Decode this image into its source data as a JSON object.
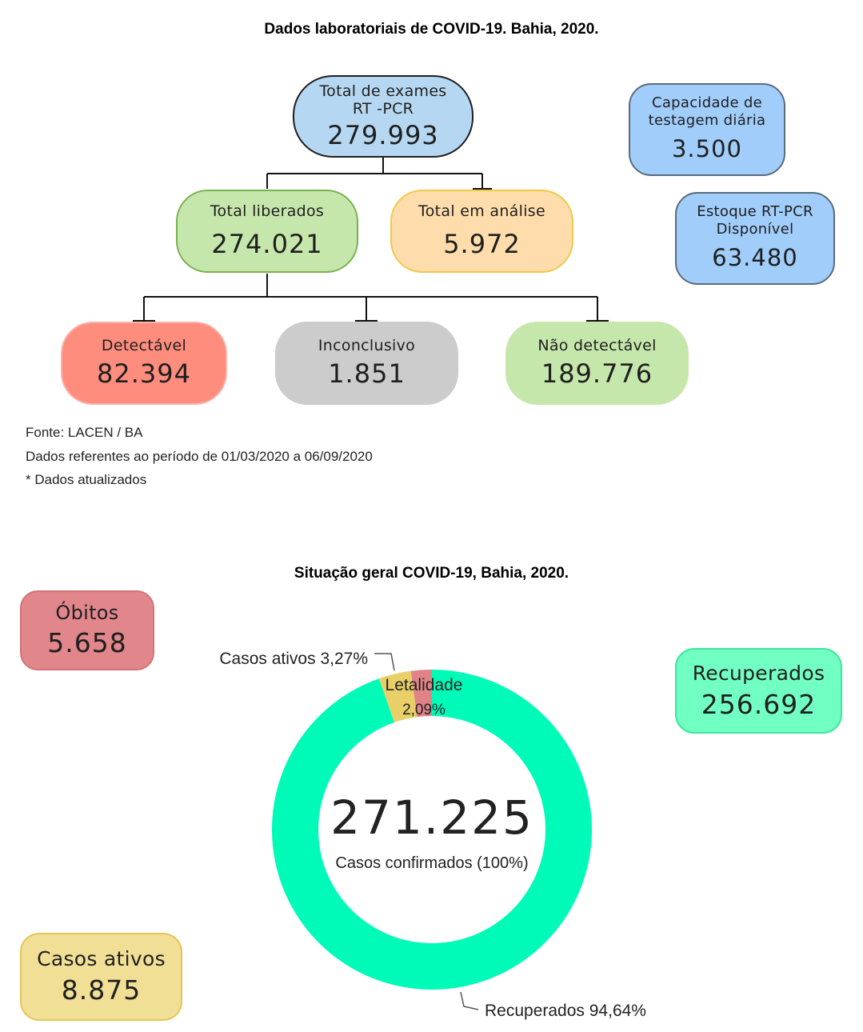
{
  "lab": {
    "title": "Dados laboratoriais de COVID-19. Bahia, 2020.",
    "total_exames": {
      "label_line1": "Total de exames",
      "label_line2": "RT -PCR",
      "value": "279.993"
    },
    "total_liberados": {
      "label": "Total liberados",
      "value": "274.021"
    },
    "total_analise": {
      "label": "Total em análise",
      "value": "5.972"
    },
    "detectavel": {
      "label": "Detectável",
      "value": "82.394"
    },
    "inconclusivo": {
      "label": "Inconclusivo",
      "value": "1.851"
    },
    "nao_detectavel": {
      "label": "Não detectável",
      "value": "189.776"
    },
    "capacidade": {
      "label_line1": "Capacidade de",
      "label_line2": "testagem diária",
      "value": "3.500"
    },
    "estoque": {
      "label_line1": "Estoque RT-PCR",
      "label_line2": "Disponível",
      "value": "63.480"
    },
    "notes": {
      "fonte": "Fonte: LACEN / BA",
      "periodo": "Dados referentes ao período de  01/03/2020 a 06/09/2020",
      "atualizados": "* Dados atualizados"
    }
  },
  "geral": {
    "title": "Situação geral COVID-19, Bahia, 2020.",
    "obitos": {
      "label": "Óbitos",
      "value": "5.658"
    },
    "recuperados": {
      "label": "Recuperados",
      "value": "256.692"
    },
    "casos_ativos": {
      "label": "Casos ativos",
      "value": "8.875"
    },
    "center_value": "271.225",
    "center_label": "Casos confirmados (100%)",
    "labels": {
      "ativos": "Casos ativos 3,27%",
      "letalidade_line1": "Letalidade",
      "letalidade_line2": "2,09%",
      "recuperados": "Recuperados 94,64%"
    }
  },
  "chart_data": {
    "type": "pie",
    "variant": "donut",
    "title": "Situação geral COVID-19, Bahia, 2020.",
    "total": 271225,
    "slices": [
      {
        "name": "Recuperados",
        "percent": 94.64,
        "color": "#00fbb9"
      },
      {
        "name": "Casos ativos",
        "percent": 3.27,
        "color": "#e8cf68"
      },
      {
        "name": "Letalidade",
        "percent": 2.09,
        "color": "#df8387"
      }
    ]
  },
  "colors": {
    "blue": "#b6d7f1",
    "green": "#c6e7ac",
    "orange": "#fedcab",
    "red": "#ff8d7e",
    "grey": "#cccccc",
    "lightblue": "#a1cdfb",
    "obitos": "#e1868b",
    "recuperados": "#72ffc3",
    "ativos": "#f1df96"
  }
}
